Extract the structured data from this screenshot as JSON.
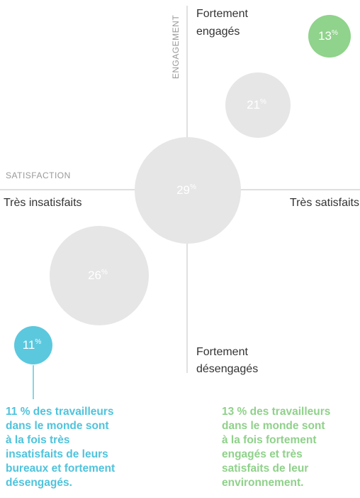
{
  "axes": {
    "vertical_label": "ENGAGEMENT",
    "horizontal_label": "SATISFACTION",
    "top": [
      "Fortement",
      "engagés"
    ],
    "bottom": [
      "Fortement",
      "désengagés"
    ],
    "left": "Très insatisfaits",
    "right": "Très satisfaits"
  },
  "bubbles": [
    {
      "value": 13,
      "unit": "%"
    },
    {
      "value": 21,
      "unit": "%"
    },
    {
      "value": 29,
      "unit": "%"
    },
    {
      "value": 26,
      "unit": "%"
    },
    {
      "value": 11,
      "unit": "%"
    }
  ],
  "notes": [
    {
      "lines": [
        "11 % des travailleurs",
        "dans le monde sont",
        "à la fois très",
        "insatisfaits de leurs",
        "bureaux et fortement",
        "désengagés."
      ]
    },
    {
      "lines": [
        "13 % des travailleurs",
        "dans le monde sont",
        "à la fois fortement",
        "engagés et très",
        "satisfaits de leur",
        "environnement."
      ]
    }
  ]
}
